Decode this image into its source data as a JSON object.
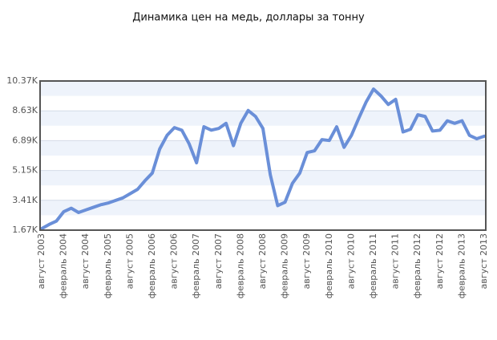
{
  "chart_data": {
    "type": "line",
    "title": "Динамика цен на медь, доллары за тонну",
    "categories": [
      "август 2003",
      null,
      null,
      "февраль 2004",
      null,
      null,
      "август 2004",
      null,
      null,
      "февраль 2005",
      null,
      null,
      "август 2005",
      null,
      null,
      "февраль 2006",
      null,
      null,
      "август 2006",
      null,
      null,
      "февраль 2007",
      null,
      null,
      "август 2007",
      null,
      null,
      "февраль 2008",
      null,
      null,
      "август 2008",
      null,
      null,
      "февраль 2009",
      null,
      null,
      "август 2009",
      null,
      null,
      "февраль 2010",
      null,
      null,
      "август 2010",
      null,
      null,
      "февраль 2011",
      null,
      null,
      "август 2011",
      null,
      null,
      "февраль 2012",
      null,
      null,
      "август 2012",
      null,
      null,
      "февраль 2013",
      null,
      null,
      "август 2013"
    ],
    "series": [
      {
        "name": "Медь",
        "color": "#6a8fd8",
        "values": [
          1760,
          2000,
          2200,
          2750,
          2950,
          2700,
          2850,
          3000,
          3150,
          3250,
          3400,
          3550,
          3800,
          4050,
          4550,
          5000,
          6400,
          7200,
          7650,
          7500,
          6700,
          5600,
          7700,
          7500,
          7600,
          7900,
          6600,
          7900,
          8650,
          8300,
          7600,
          4900,
          3100,
          3300,
          4400,
          5000,
          6200,
          6300,
          6950,
          6900,
          7700,
          6500,
          7200,
          8200,
          9150,
          9900,
          9500,
          9000,
          9300,
          7400,
          7550,
          8400,
          8300,
          7450,
          7500,
          8050,
          7900,
          8050,
          7200,
          7000,
          7150
        ]
      }
    ],
    "ylim": [
      1670,
      10370
    ],
    "yticks": [
      {
        "value": 1670,
        "label": "1.67K"
      },
      {
        "value": 3410,
        "label": "3.41K"
      },
      {
        "value": 5150,
        "label": "5.15K"
      },
      {
        "value": 6890,
        "label": "6.89K"
      },
      {
        "value": 8630,
        "label": "8.63K"
      },
      {
        "value": 10370,
        "label": "10.37K"
      }
    ],
    "grid": true
  }
}
